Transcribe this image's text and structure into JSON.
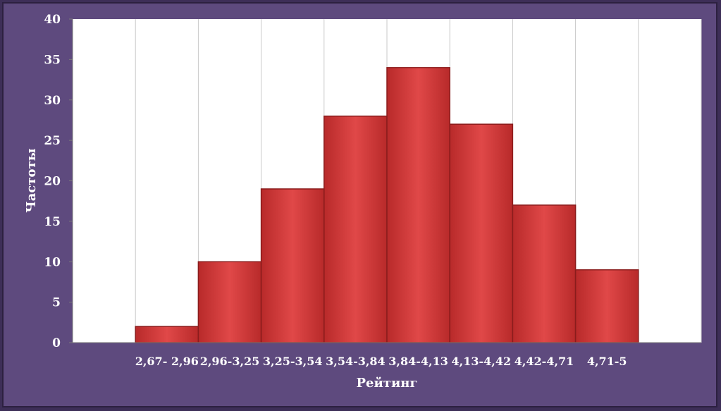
{
  "chart_data": {
    "type": "bar",
    "xlabel": "Рейтинг",
    "ylabel": "Частоты",
    "ylim": [
      0,
      40
    ],
    "yticks": [
      "0",
      "5",
      "10",
      "15",
      "20",
      "25",
      "30",
      "35",
      "40"
    ],
    "categories": [
      "2,67- 2,96",
      "2,96-3,25",
      "3,25-3,54",
      "3,54-3,84",
      "3,84-4,13",
      "4,13-4,42",
      "4,42-4,71",
      "4,71-5"
    ],
    "values": [
      2,
      10,
      19,
      28,
      34,
      27,
      17,
      9
    ],
    "grid": "vertical",
    "bar_color": "#d43a3a",
    "plot_background": "#ffffff",
    "frame_color": "#5e4a7e"
  }
}
